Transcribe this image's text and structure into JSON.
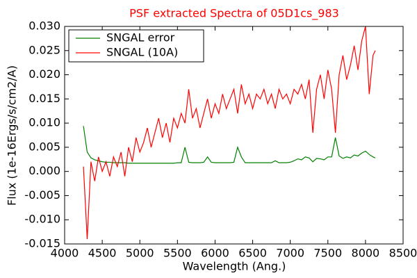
{
  "chart_data": {
    "type": "line",
    "title": "PSF extracted Spectra of 05D1cs_983",
    "xlabel": "Wavelength (Ang.)",
    "ylabel": "Flux (1e-16Ergs/s/cm2/A)",
    "x": [
      4250,
      4300,
      4350,
      4400,
      4450,
      4500,
      4550,
      4600,
      4650,
      4700,
      4750,
      4800,
      4850,
      4900,
      4950,
      5000,
      5050,
      5100,
      5150,
      5200,
      5250,
      5300,
      5350,
      5400,
      5450,
      5500,
      5550,
      5600,
      5650,
      5700,
      5750,
      5800,
      5850,
      5900,
      5950,
      6000,
      6050,
      6100,
      6150,
      6200,
      6250,
      6300,
      6350,
      6400,
      6450,
      6500,
      6550,
      6600,
      6650,
      6700,
      6750,
      6800,
      6850,
      6900,
      6950,
      7000,
      7050,
      7100,
      7150,
      7200,
      7250,
      7300,
      7350,
      7400,
      7450,
      7500,
      7550,
      7600,
      7650,
      7700,
      7750,
      7800,
      7850,
      7900,
      7950,
      8000,
      8050,
      8100,
      8130
    ],
    "series": [
      {
        "name": "SNGAL error",
        "color": "#008000",
        "values": [
          0.0094,
          0.004,
          0.0028,
          0.0024,
          0.0022,
          0.002,
          0.0019,
          0.0019,
          0.0018,
          0.0018,
          0.0018,
          0.0018,
          0.0017,
          0.0017,
          0.0017,
          0.0017,
          0.0017,
          0.0017,
          0.0017,
          0.0017,
          0.0017,
          0.0017,
          0.0017,
          0.0017,
          0.0017,
          0.0018,
          0.0018,
          0.005,
          0.0019,
          0.0018,
          0.0018,
          0.0018,
          0.0019,
          0.003,
          0.0019,
          0.0018,
          0.0018,
          0.0018,
          0.0018,
          0.0018,
          0.0019,
          0.005,
          0.003,
          0.0018,
          0.0018,
          0.0018,
          0.0018,
          0.0018,
          0.0018,
          0.0018,
          0.0018,
          0.0022,
          0.0018,
          0.0018,
          0.0018,
          0.0019,
          0.0022,
          0.0026,
          0.0024,
          0.003,
          0.0028,
          0.002,
          0.0027,
          0.0026,
          0.0024,
          0.003,
          0.003,
          0.007,
          0.0032,
          0.0027,
          0.003,
          0.0028,
          0.0034,
          0.0032,
          0.0038,
          0.0042,
          0.0035,
          0.003,
          0.0028
        ]
      },
      {
        "name": "SNGAL (10A)",
        "color": "#ff0000",
        "values": [
          0.001,
          -0.014,
          0.002,
          -0.002,
          0.003,
          0.0,
          0.002,
          -0.001,
          0.003,
          0.001,
          0.004,
          -0.001,
          0.005,
          0.002,
          0.007,
          0.004,
          0.006,
          0.009,
          0.005,
          0.008,
          0.011,
          0.007,
          0.01,
          0.006,
          0.011,
          0.009,
          0.012,
          0.01,
          0.017,
          0.011,
          0.013,
          0.009,
          0.012,
          0.015,
          0.011,
          0.014,
          0.012,
          0.016,
          0.013,
          0.015,
          0.017,
          0.012,
          0.018,
          0.014,
          0.016,
          0.013,
          0.016,
          0.015,
          0.017,
          0.014,
          0.016,
          0.013,
          0.017,
          0.015,
          0.016,
          0.014,
          0.017,
          0.016,
          0.018,
          0.015,
          0.019,
          0.008,
          0.017,
          0.02,
          0.015,
          0.021,
          0.017,
          0.008,
          0.02,
          0.024,
          0.019,
          0.022,
          0.026,
          0.021,
          0.027,
          0.03,
          0.016,
          0.024,
          0.025
        ]
      }
    ],
    "xlim": [
      4000,
      8500
    ],
    "xticks": [
      4000,
      4500,
      5000,
      5500,
      6000,
      6500,
      7000,
      7500,
      8000,
      8500
    ],
    "ylim": [
      -0.015,
      0.03
    ],
    "yticks": [
      {
        "value": -0.015,
        "label": "-0.015"
      },
      {
        "value": -0.01,
        "label": "-0.010"
      },
      {
        "value": -0.005,
        "label": "-0.005"
      },
      {
        "value": 0,
        "label": "0.000"
      },
      {
        "value": 0.005,
        "label": "0.005"
      },
      {
        "value": 0.01,
        "label": "0.010"
      },
      {
        "value": 0.015,
        "label": "0.015"
      },
      {
        "value": 0.02,
        "label": "0.020"
      },
      {
        "value": 0.025,
        "label": "0.025"
      },
      {
        "value": 0.03,
        "label": "0.030"
      }
    ],
    "grid": false,
    "legend": "upper left"
  }
}
